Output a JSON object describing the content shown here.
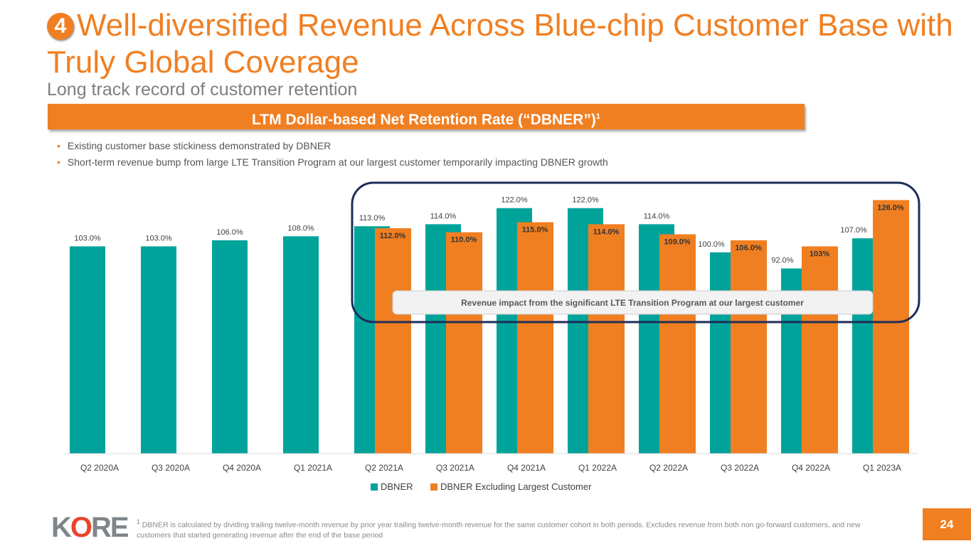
{
  "header": {
    "number": "4",
    "title": "Well-diversified Revenue Across Blue-chip Customer Base with Truly Global Coverage",
    "subtitle": "Long track record of customer retention",
    "banner": "LTM Dollar-based Net Retention Rate (“DBNER”)",
    "banner_sup": "1"
  },
  "bullets": [
    "Existing customer base stickiness demonstrated by DBNER",
    "Short-term revenue bump from large LTE Transition Program at our largest customer temporarily impacting DBNER growth"
  ],
  "chart_data": {
    "type": "bar",
    "categories": [
      "Q2 2020A",
      "Q3 2020A",
      "Q4 2020A",
      "Q1 2021A",
      "Q2 2021A",
      "Q3 2021A",
      "Q4 2021A",
      "Q1 2022A",
      "Q2 2022A",
      "Q3 2022A",
      "Q4 2022A",
      "Q1 2023A"
    ],
    "series": [
      {
        "name": "DBNER",
        "color": "#00a39a",
        "values": [
          103,
          103,
          106,
          108,
          113,
          114,
          122,
          122,
          114,
          100,
          92,
          107
        ],
        "labels": [
          "103.0%",
          "103.0%",
          "106.0%",
          "108.0%",
          "113.0%",
          "114.0%",
          "122.0%",
          "122.0%",
          "114.0%",
          "100.0%",
          "92.0%",
          "107.0%"
        ]
      },
      {
        "name": "DBNER Excluding Largest Customer",
        "color": "#f07f22",
        "values": [
          null,
          null,
          null,
          null,
          112,
          110,
          115,
          114,
          109,
          106,
          103,
          126
        ],
        "labels": [
          null,
          null,
          null,
          null,
          "112.0%",
          "110.0%",
          "115.0%",
          "114.0%",
          "109.0%",
          "106.0%",
          "103%",
          "126.0%"
        ]
      }
    ],
    "ylim": [
      0,
      130
    ],
    "legend": "bottom",
    "annotation": "Revenue impact from the significant LTE Transition Program at our largest customer"
  },
  "footnote": {
    "sup": "1",
    "text": "DBNER is calculated by dividing trailing twelve-month revenue by prior year trailing twelve-month revenue for the same customer cohort in both periods. Excludes revenue from both non go-forward customers, and new customers that started generating revenue after the end of the base period"
  },
  "logo": "KORE",
  "page_number": "24"
}
